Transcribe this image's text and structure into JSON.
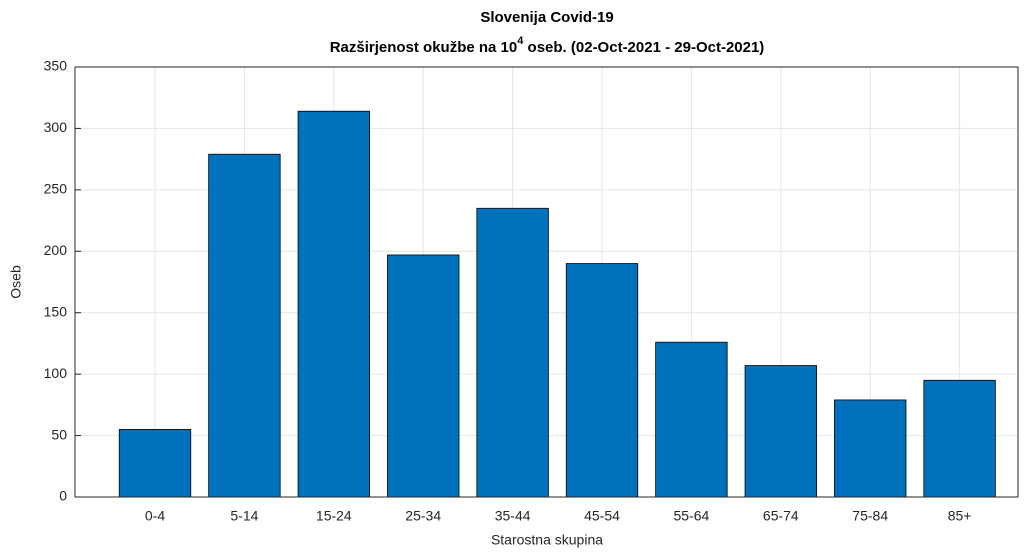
{
  "chart_data": {
    "type": "bar",
    "title": "Slovenija Covid-19",
    "subtitle": {
      "text": "Razširjenost okužbe na 10",
      "superscript": "4",
      "rest": " oseb. (02-Oct-2021 - 29-Oct-2021)"
    },
    "xlabel": "Starostna skupina",
    "ylabel": "Oseb",
    "categories": [
      "0-4",
      "5-14",
      "15-24",
      "25-34",
      "35-44",
      "45-54",
      "55-64",
      "65-74",
      "75-84",
      "85+"
    ],
    "values": [
      55,
      279,
      314,
      197,
      235,
      190,
      126,
      107,
      79,
      95
    ],
    "color": "#0072bd",
    "ylim": [
      0,
      350
    ],
    "yticks": [
      0,
      50,
      100,
      150,
      200,
      250,
      300,
      350
    ],
    "grid": true
  }
}
